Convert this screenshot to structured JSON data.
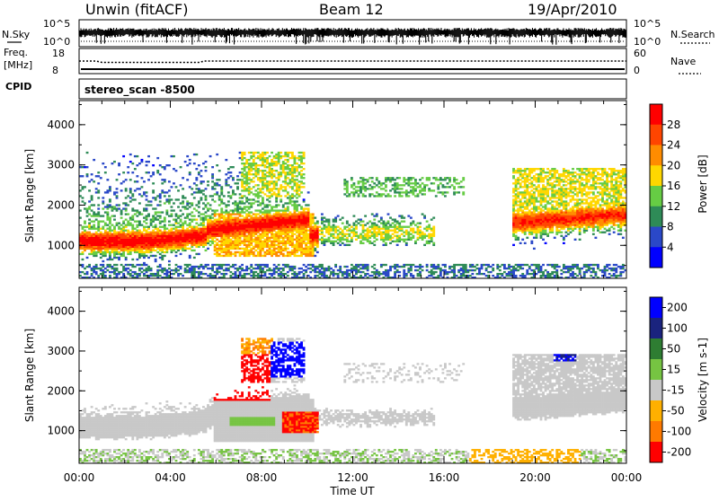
{
  "header": {
    "station": "Unwin (fitACF)",
    "beam": "Beam 12",
    "date": "19/Apr/2010"
  },
  "noise_panel": {
    "left_label": "N.Sky",
    "right_label": "N.Search",
    "left_ticks": [
      "10^5",
      "10^0"
    ],
    "right_ticks": [
      "10^5",
      "10^0"
    ]
  },
  "freq_panel": {
    "left_label": "Freq.",
    "left_unit": "[MHz]",
    "right_label": "Nave",
    "left_ticks": [
      "18",
      "8"
    ],
    "right_ticks": [
      "60",
      "0"
    ]
  },
  "cpid": {
    "label": "CPID",
    "value": "stereo_scan -8500"
  },
  "x_axis": {
    "label": "Time UT",
    "ticks": [
      "00:00",
      "04:00",
      "08:00",
      "12:00",
      "16:00",
      "20:00",
      "00:00"
    ]
  },
  "colors": {
    "power": [
      "#0000ff",
      "#2a48c8",
      "#2e8b57",
      "#66cc44",
      "#ffd700",
      "#ff8c00",
      "#ff4500",
      "#ff0000"
    ],
    "velocity": [
      "#0000ff",
      "#1a237e",
      "#2e7d32",
      "#76c442",
      "#c8c8c8",
      "#ffb000",
      "#ff7a00",
      "#ff0000"
    ]
  },
  "chart_data": [
    {
      "type": "heatmap",
      "ylabel": "Slant Range [km]",
      "xlabel": "",
      "yticks": [
        "1000",
        "2000",
        "3000",
        "4000"
      ],
      "ylim": [
        180,
        4600
      ],
      "xlim": [
        0,
        24
      ],
      "colorbar": {
        "label": "Power [dB]",
        "ticks": [
          "4",
          "8",
          "12",
          "16",
          "20",
          "24",
          "28"
        ]
      }
    },
    {
      "type": "heatmap",
      "ylabel": "Slant Range [km]",
      "xlabel": "Time UT",
      "yticks": [
        "1000",
        "2000",
        "3000",
        "4000"
      ],
      "ylim": [
        180,
        4600
      ],
      "xlim": [
        0,
        24
      ],
      "colorbar": {
        "label": "Velocity [m s-1]",
        "ticks": [
          "200",
          "100",
          "50",
          "15",
          "-15",
          "-50",
          "-100",
          "-200"
        ]
      }
    }
  ]
}
